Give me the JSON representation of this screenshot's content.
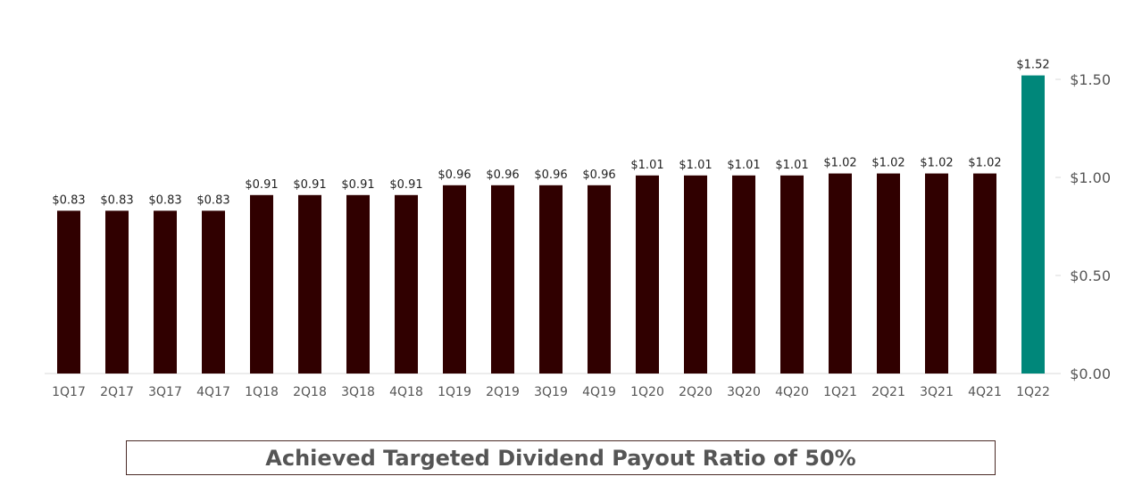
{
  "chart_data": {
    "type": "bar",
    "categories": [
      "1Q17",
      "2Q17",
      "3Q17",
      "4Q17",
      "1Q18",
      "2Q18",
      "3Q18",
      "4Q18",
      "1Q19",
      "2Q19",
      "3Q19",
      "4Q19",
      "1Q20",
      "2Q20",
      "3Q20",
      "4Q20",
      "1Q21",
      "2Q21",
      "3Q21",
      "4Q21",
      "1Q22"
    ],
    "values": [
      0.83,
      0.83,
      0.83,
      0.83,
      0.91,
      0.91,
      0.91,
      0.91,
      0.96,
      0.96,
      0.96,
      0.96,
      1.01,
      1.01,
      1.01,
      1.01,
      1.02,
      1.02,
      1.02,
      1.02,
      1.52
    ],
    "data_labels": [
      "$0.83",
      "$0.83",
      "$0.83",
      "$0.83",
      "$0.91",
      "$0.91",
      "$0.91",
      "$0.91",
      "$0.96",
      "$0.96",
      "$0.96",
      "$0.96",
      "$1.01",
      "$1.01",
      "$1.01",
      "$1.01",
      "$1.02",
      "$1.02",
      "$1.02",
      "$1.02",
      "$1.52"
    ],
    "y_ticks": [
      {
        "value": 0,
        "label": "$0.00"
      },
      {
        "value": 0.5,
        "label": "$0.50"
      },
      {
        "value": 1.0,
        "label": "$1.00"
      },
      {
        "value": 1.5,
        "label": "$1.50"
      }
    ],
    "ylim": [
      0,
      1.5
    ],
    "y_axis_side": "right",
    "grid": false,
    "bar_color": "#300000",
    "highlight_color": "#00877a",
    "highlight_category": "1Q22",
    "title": "",
    "xlabel": "",
    "ylabel": ""
  },
  "banner": {
    "text": "Achieved Targeted Dividend Payout Ratio of 50%"
  }
}
